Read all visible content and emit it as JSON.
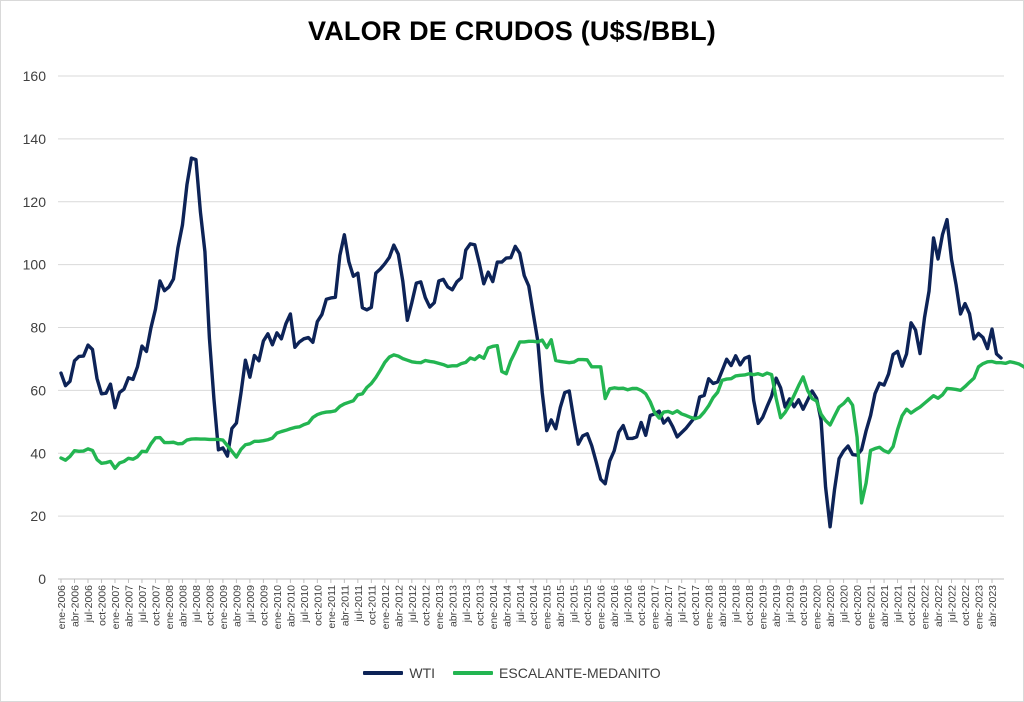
{
  "chart_data": {
    "type": "line",
    "title": "VALOR DE CRUDOS (U$S/BBL)",
    "xlabel": "",
    "ylabel": "",
    "ylim": [
      0,
      160
    ],
    "yticks": [
      0,
      20,
      40,
      60,
      80,
      100,
      120,
      140,
      160
    ],
    "x_tick_labels": [
      "ene-2006",
      "abr-2006",
      "jul-2006",
      "oct-2006",
      "ene-2007",
      "abr-2007",
      "jul-2007",
      "oct-2007",
      "ene-2008",
      "abr-2008",
      "jul-2008",
      "oct-2008",
      "ene-2009",
      "abr-2009",
      "jul-2009",
      "oct-2009",
      "ene-2010",
      "abr-2010",
      "jul-2010",
      "oct-2010",
      "ene-2011",
      "abr-2011",
      "jul-2011",
      "oct-2011",
      "ene-2012",
      "abr-2012",
      "jul-2012",
      "oct-2012",
      "ene-2013",
      "abr-2013",
      "jul-2013",
      "oct-2013",
      "ene-2014",
      "abr-2014",
      "jul-2014",
      "oct-2014",
      "ene-2015",
      "abr-2015",
      "jul-2015",
      "oct-2015",
      "ene-2016",
      "abr-2016",
      "jul-2016",
      "oct-2016",
      "ene-2017",
      "abr-2017",
      "jul-2017",
      "oct-2017",
      "ene-2018",
      "abr-2018",
      "jul-2018",
      "oct-2018",
      "ene-2019",
      "abr-2019",
      "jul-2019",
      "oct-2019",
      "ene-2020",
      "abr-2020",
      "jul-2020",
      "oct-2020",
      "ene-2021",
      "abr-2021",
      "jul-2021",
      "oct-2021",
      "ene-2022",
      "abr-2022",
      "jul-2022",
      "oct-2022",
      "ene-2023",
      "abr-2023"
    ],
    "grid": true,
    "legend_position": "bottom",
    "series": [
      {
        "name": "WTI",
        "color": "#0d2357",
        "values": [
          65.5,
          61.5,
          62.9,
          69.4,
          70.8,
          70.9,
          74.4,
          73.0,
          63.8,
          58.9,
          59.1,
          62.0,
          54.5,
          59.3,
          60.4,
          64.0,
          63.5,
          67.5,
          74.1,
          72.4,
          79.9,
          85.8,
          94.8,
          91.7,
          92.9,
          95.4,
          105.4,
          112.6,
          125.4,
          133.9,
          133.4,
          116.7,
          104.1,
          76.6,
          57.3,
          41.1,
          41.7,
          39.1,
          47.9,
          49.6,
          59.0,
          69.6,
          64.2,
          71.1,
          69.4,
          75.7,
          78.0,
          74.5,
          78.3,
          76.4,
          81.2,
          84.3,
          73.7,
          75.4,
          76.4,
          76.8,
          75.3,
          81.9,
          84.1,
          89.0,
          89.4,
          89.6,
          102.9,
          109.5,
          100.9,
          96.3,
          97.3,
          86.3,
          85.6,
          86.4,
          97.3,
          98.6,
          100.3,
          102.3,
          106.2,
          103.3,
          94.7,
          82.3,
          87.9,
          94.1,
          94.5,
          89.5,
          86.5,
          87.9,
          94.8,
          95.3,
          92.9,
          92.0,
          94.5,
          95.8,
          104.6,
          106.6,
          106.3,
          100.5,
          93.9,
          97.6,
          94.6,
          100.8,
          100.8,
          102.1,
          102.2,
          105.8,
          103.6,
          96.5,
          93.2,
          84.4,
          75.8,
          59.3,
          47.2,
          50.6,
          47.8,
          54.5,
          59.3,
          59.8,
          50.9,
          42.9,
          45.5,
          46.2,
          42.4,
          37.2,
          31.7,
          30.3,
          37.5,
          40.8,
          46.7,
          48.8,
          44.7,
          44.7,
          45.2,
          49.8,
          45.7,
          52.0,
          52.5,
          53.4,
          49.6,
          51.1,
          48.5,
          45.2,
          46.6,
          48.0,
          49.8,
          51.6,
          57.9,
          58.4,
          63.7,
          62.2,
          62.7,
          66.3,
          69.9,
          67.9,
          71.0,
          68.1,
          70.2,
          70.8,
          56.9,
          49.5,
          51.4,
          54.9,
          58.2,
          63.9,
          60.8,
          54.7,
          57.3,
          54.8,
          57.0,
          54.0,
          56.9,
          59.8,
          57.5,
          50.5,
          29.2,
          16.6,
          28.6,
          38.3,
          40.7,
          42.3,
          39.6,
          39.4,
          41.1,
          47.1,
          52.0,
          59.0,
          62.3,
          61.7,
          65.2,
          71.4,
          72.4,
          67.7,
          71.6,
          81.5,
          79.2,
          71.7,
          83.2,
          91.6,
          108.5,
          101.8,
          109.6,
          114.3,
          101.6,
          93.7,
          84.3,
          87.6,
          84.4,
          76.4,
          78.1,
          76.8,
          73.3,
          79.5,
          71.6,
          70.3
        ]
      },
      {
        "name": "ESCALANTE-MEDANITO",
        "color": "#23b551",
        "values": [
          38.5,
          37.8,
          39.0,
          40.8,
          40.6,
          40.7,
          41.4,
          40.9,
          38.0,
          36.8,
          37.0,
          37.4,
          35.2,
          36.9,
          37.4,
          38.4,
          38.1,
          38.9,
          40.6,
          40.5,
          43.0,
          44.9,
          45.0,
          43.4,
          43.4,
          43.5,
          43.0,
          43.1,
          44.2,
          44.5,
          44.6,
          44.5,
          44.5,
          44.4,
          44.4,
          44.4,
          44.2,
          42.4,
          40.6,
          38.8,
          41.2,
          42.7,
          43.0,
          43.8,
          43.8,
          44.0,
          44.3,
          44.8,
          46.4,
          46.9,
          47.3,
          47.8,
          48.2,
          48.4,
          49.1,
          49.6,
          51.4,
          52.3,
          52.8,
          53.1,
          53.2,
          53.5,
          54.9,
          55.7,
          56.2,
          56.7,
          58.6,
          58.9,
          60.9,
          62.2,
          64.1,
          66.4,
          68.9,
          70.6,
          71.3,
          70.9,
          70.1,
          69.6,
          69.1,
          68.9,
          68.8,
          69.5,
          69.2,
          69.0,
          68.6,
          68.2,
          67.6,
          67.8,
          67.8,
          68.5,
          68.9,
          70.3,
          69.8,
          71.0,
          70.2,
          73.5,
          74.0,
          74.2,
          66.0,
          65.3,
          69.4,
          72.3,
          75.4,
          75.4,
          75.6,
          75.6,
          75.4,
          76.0,
          73.6,
          76.1,
          69.5,
          69.2,
          69.0,
          68.8,
          69.0,
          69.8,
          69.8,
          69.7,
          67.5,
          67.5,
          67.5,
          57.4,
          60.5,
          60.8,
          60.6,
          60.7,
          60.2,
          60.6,
          60.6,
          60.0,
          58.9,
          56.4,
          52.9,
          51.2,
          53.1,
          53.3,
          52.7,
          53.5,
          52.5,
          52.0,
          51.4,
          51.0,
          51.5,
          53.1,
          55.1,
          57.7,
          59.4,
          63.2,
          63.6,
          63.7,
          64.6,
          64.8,
          64.9,
          65.3,
          65.0,
          65.3,
          64.8,
          65.5,
          65.0,
          57.5,
          51.3,
          53.0,
          55.4,
          58.4,
          61.5,
          64.3,
          60.0,
          57.4,
          56.6,
          52.4,
          50.4,
          49.0,
          51.9,
          54.7,
          55.8,
          57.4,
          55.3,
          45.1,
          24.2,
          30.5,
          40.9,
          41.5,
          41.9,
          40.8,
          40.2,
          42.1,
          47.5,
          51.9,
          54.0,
          52.8,
          53.8,
          54.7,
          55.9,
          57.1,
          58.3,
          57.5,
          58.6,
          60.6,
          60.5,
          60.3,
          60.0,
          61.2,
          62.6,
          63.9,
          67.5,
          68.5,
          69.1,
          69.2,
          68.8,
          68.8,
          68.6,
          69.1,
          68.8,
          68.4,
          67.6,
          66.4,
          65.6
        ]
      }
    ]
  }
}
